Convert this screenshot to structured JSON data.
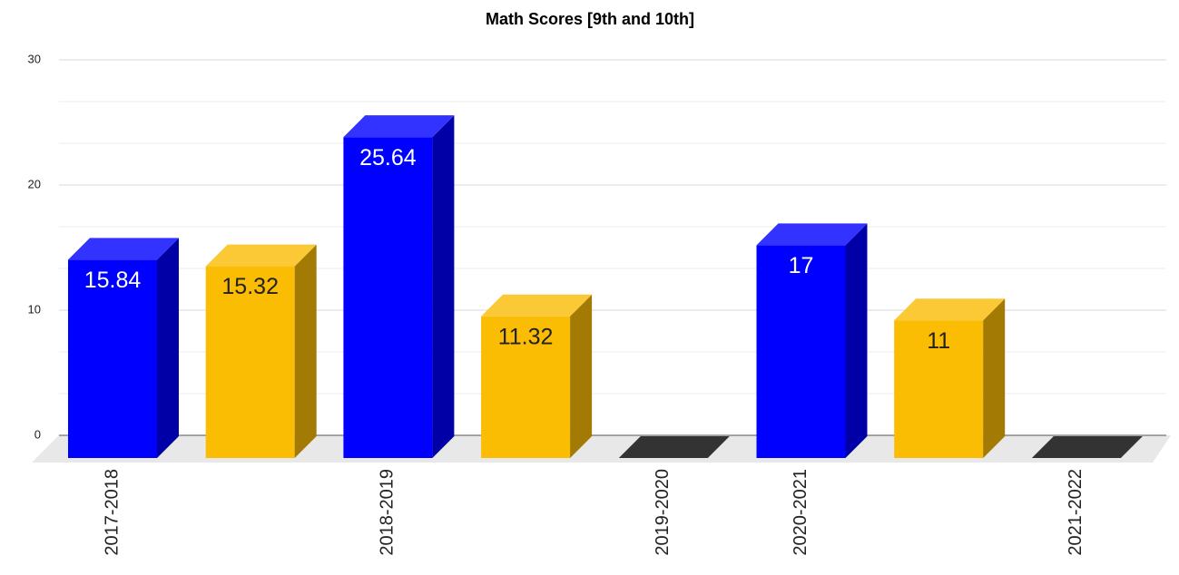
{
  "chart_data": {
    "type": "bar3d",
    "title": "Math Scores [9th and 10th]",
    "categories": [
      "2017-2018",
      null,
      "2018-2019",
      null,
      "2019-2020",
      "2020-2021",
      null,
      "2021-2022"
    ],
    "values": [
      15.84,
      15.32,
      25.64,
      11.32,
      0,
      17,
      11,
      0
    ],
    "colors": [
      "#0000ff",
      "#fbbc04",
      "#0000ff",
      "#fbbc04",
      "#333333",
      "#0000ff",
      "#fbbc04",
      "#333333"
    ],
    "ylim": [
      0,
      30
    ],
    "yticks": [
      0,
      10,
      20,
      30
    ],
    "grid": true,
    "minor_divisions": 3
  }
}
